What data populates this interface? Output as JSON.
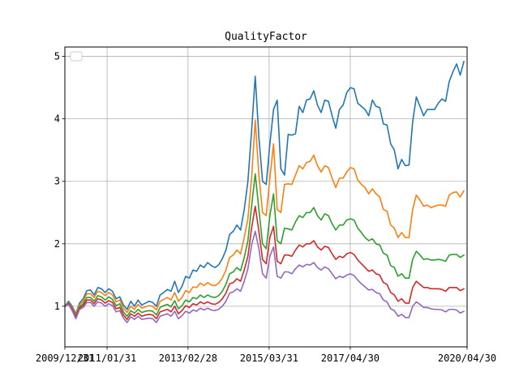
{
  "chart_data": {
    "type": "line",
    "title": "QualityFactor",
    "xlabel": "",
    "ylabel": "",
    "x_start": "2009/12/31",
    "x_end": "2020/03/31",
    "x_ticks": [
      "2009/12/31",
      "2011/01/31",
      "2013/02/28",
      "2015/03/31",
      "2017/04/30",
      "2020/04/30"
    ],
    "y_ticks": [
      1,
      2,
      3,
      4,
      5
    ],
    "ylim": [
      0.35,
      5.15
    ],
    "grid": true,
    "legend": "upper-left, empty",
    "colors": [
      "#1f77b4",
      "#ff7f0e",
      "#2ca02c",
      "#d62728",
      "#9467bd"
    ],
    "series": [
      {
        "values": [
          1.0,
          1.08,
          1.0,
          0.88,
          1.05,
          1.12,
          1.25,
          1.26,
          1.18,
          1.3,
          1.28,
          1.22,
          1.28,
          1.24,
          1.12,
          1.15,
          1.02,
          0.95,
          1.08,
          1.0,
          1.1,
          1.02,
          1.05,
          1.08,
          1.06,
          1.0,
          1.18,
          1.22,
          1.27,
          1.24,
          1.4,
          1.22,
          1.32,
          1.48,
          1.45,
          1.58,
          1.56,
          1.66,
          1.62,
          1.7,
          1.65,
          1.62,
          1.66,
          1.76,
          1.9,
          2.15,
          2.2,
          2.3,
          2.22,
          2.55,
          3.0,
          3.8,
          4.68,
          3.7,
          3.0,
          2.95,
          3.6,
          4.15,
          4.3,
          3.2,
          3.1,
          3.75,
          3.74,
          3.76,
          4.2,
          4.1,
          4.3,
          4.32,
          4.45,
          4.22,
          4.1,
          4.3,
          4.28,
          4.05,
          3.85,
          4.15,
          4.22,
          4.42,
          4.5,
          4.48,
          4.25,
          4.2,
          4.15,
          4.05,
          4.3,
          4.2,
          4.18,
          3.92,
          3.9,
          3.6,
          3.5,
          3.2,
          3.35,
          3.25,
          3.26,
          3.95,
          4.35,
          4.2,
          4.05,
          4.15,
          4.15,
          4.15,
          4.25,
          4.32,
          4.28,
          4.6,
          4.75,
          4.88,
          4.7,
          4.92
        ]
      },
      {
        "values": [
          1.0,
          1.06,
          0.98,
          0.86,
          1.02,
          1.08,
          1.2,
          1.2,
          1.14,
          1.24,
          1.22,
          1.17,
          1.22,
          1.18,
          1.07,
          1.1,
          0.97,
          0.9,
          1.0,
          0.95,
          1.03,
          0.97,
          0.99,
          1.01,
          1.0,
          0.94,
          1.08,
          1.11,
          1.14,
          1.1,
          1.22,
          1.08,
          1.14,
          1.25,
          1.22,
          1.31,
          1.3,
          1.37,
          1.33,
          1.38,
          1.34,
          1.33,
          1.37,
          1.45,
          1.58,
          1.78,
          1.82,
          1.9,
          1.84,
          2.1,
          2.4,
          3.05,
          3.98,
          3.1,
          2.5,
          2.45,
          3.05,
          3.6,
          2.55,
          2.5,
          2.95,
          2.96,
          2.95,
          3.1,
          3.25,
          3.2,
          3.3,
          3.32,
          3.42,
          3.25,
          3.15,
          3.25,
          3.22,
          3.05,
          2.9,
          3.05,
          3.05,
          3.15,
          3.22,
          3.2,
          3.02,
          2.95,
          2.9,
          2.8,
          2.88,
          2.8,
          2.75,
          2.55,
          2.52,
          2.3,
          2.25,
          2.1,
          2.18,
          2.1,
          2.1,
          2.55,
          2.78,
          2.7,
          2.6,
          2.62,
          2.58,
          2.6,
          2.62,
          2.62,
          2.6,
          2.78,
          2.82,
          2.83,
          2.75,
          2.85
        ]
      },
      {
        "values": [
          1.0,
          1.05,
          0.96,
          0.84,
          0.99,
          1.04,
          1.14,
          1.14,
          1.08,
          1.17,
          1.15,
          1.1,
          1.15,
          1.11,
          1.01,
          1.04,
          0.91,
          0.84,
          0.93,
          0.89,
          0.95,
          0.9,
          0.92,
          0.93,
          0.92,
          0.86,
          0.98,
          1.01,
          1.03,
          0.99,
          1.09,
          0.96,
          1.01,
          1.1,
          1.07,
          1.14,
          1.12,
          1.18,
          1.14,
          1.18,
          1.15,
          1.14,
          1.17,
          1.24,
          1.35,
          1.52,
          1.55,
          1.62,
          1.57,
          1.78,
          2.05,
          2.6,
          3.12,
          2.55,
          2.0,
          1.92,
          2.45,
          2.8,
          2.05,
          2.0,
          2.25,
          2.24,
          2.22,
          2.35,
          2.45,
          2.42,
          2.5,
          2.5,
          2.58,
          2.45,
          2.38,
          2.48,
          2.45,
          2.32,
          2.22,
          2.3,
          2.3,
          2.38,
          2.4,
          2.38,
          2.25,
          2.18,
          2.1,
          2.05,
          2.08,
          2.0,
          1.98,
          1.85,
          1.82,
          1.65,
          1.62,
          1.48,
          1.52,
          1.45,
          1.45,
          1.75,
          1.88,
          1.82,
          1.75,
          1.76,
          1.74,
          1.74,
          1.75,
          1.74,
          1.72,
          1.82,
          1.83,
          1.83,
          1.78,
          1.82
        ]
      },
      {
        "values": [
          1.0,
          1.04,
          0.95,
          0.82,
          0.97,
          1.01,
          1.1,
          1.1,
          1.04,
          1.12,
          1.1,
          1.05,
          1.09,
          1.06,
          0.96,
          0.98,
          0.86,
          0.79,
          0.88,
          0.84,
          0.89,
          0.84,
          0.86,
          0.87,
          0.86,
          0.8,
          0.91,
          0.93,
          0.95,
          0.91,
          1.0,
          0.88,
          0.93,
          1.01,
          0.98,
          1.04,
          1.02,
          1.07,
          1.04,
          1.07,
          1.04,
          1.03,
          1.06,
          1.12,
          1.21,
          1.36,
          1.38,
          1.44,
          1.4,
          1.58,
          1.8,
          2.25,
          2.6,
          2.2,
          1.75,
          1.68,
          2.1,
          2.28,
          1.72,
          1.68,
          1.82,
          1.82,
          1.8,
          1.9,
          1.98,
          1.95,
          2.0,
          2.0,
          2.05,
          1.95,
          1.9,
          1.96,
          1.94,
          1.84,
          1.75,
          1.8,
          1.78,
          1.84,
          1.86,
          1.83,
          1.74,
          1.68,
          1.62,
          1.56,
          1.58,
          1.52,
          1.5,
          1.38,
          1.35,
          1.22,
          1.18,
          1.08,
          1.12,
          1.05,
          1.05,
          1.3,
          1.4,
          1.35,
          1.3,
          1.3,
          1.28,
          1.28,
          1.28,
          1.27,
          1.24,
          1.3,
          1.3,
          1.3,
          1.25,
          1.28
        ]
      },
      {
        "values": [
          1.0,
          1.03,
          0.93,
          0.8,
          0.95,
          0.98,
          1.06,
          1.06,
          1.0,
          1.07,
          1.05,
          1.0,
          1.04,
          1.01,
          0.91,
          0.93,
          0.81,
          0.74,
          0.83,
          0.79,
          0.84,
          0.79,
          0.8,
          0.81,
          0.8,
          0.74,
          0.84,
          0.86,
          0.88,
          0.84,
          0.92,
          0.8,
          0.85,
          0.92,
          0.89,
          0.94,
          0.92,
          0.97,
          0.94,
          0.97,
          0.94,
          0.93,
          0.95,
          1.0,
          1.08,
          1.21,
          1.23,
          1.28,
          1.24,
          1.4,
          1.6,
          1.98,
          2.2,
          1.92,
          1.52,
          1.45,
          1.8,
          1.95,
          1.48,
          1.45,
          1.55,
          1.55,
          1.52,
          1.6,
          1.66,
          1.63,
          1.67,
          1.66,
          1.7,
          1.62,
          1.58,
          1.63,
          1.6,
          1.52,
          1.44,
          1.48,
          1.46,
          1.5,
          1.52,
          1.49,
          1.42,
          1.36,
          1.31,
          1.26,
          1.27,
          1.22,
          1.2,
          1.1,
          1.07,
          0.96,
          0.93,
          0.84,
          0.87,
          0.82,
          0.82,
          1.0,
          1.07,
          1.03,
          0.98,
          0.98,
          0.96,
          0.95,
          0.95,
          0.94,
          0.91,
          0.95,
          0.95,
          0.94,
          0.89,
          0.92
        ]
      }
    ]
  }
}
